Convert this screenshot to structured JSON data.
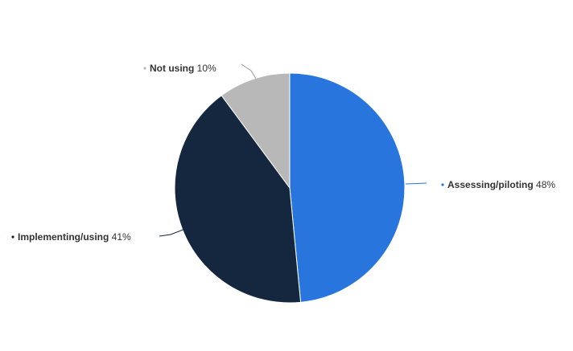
{
  "chart_data": {
    "type": "pie",
    "slices": [
      {
        "label": "Assessing/piloting",
        "value": 48,
        "value_label": "48%",
        "color": "#2876dd"
      },
      {
        "label": "Implementing/using",
        "value": 41,
        "value_label": "41%",
        "color": "#14273e"
      },
      {
        "label": "Not using",
        "value": 10,
        "value_label": "10%",
        "color": "#b8b8b8"
      }
    ],
    "start_angle": "12 o'clock",
    "direction": "clockwise",
    "legend": "none",
    "data_labels": "outside with leader lines"
  }
}
